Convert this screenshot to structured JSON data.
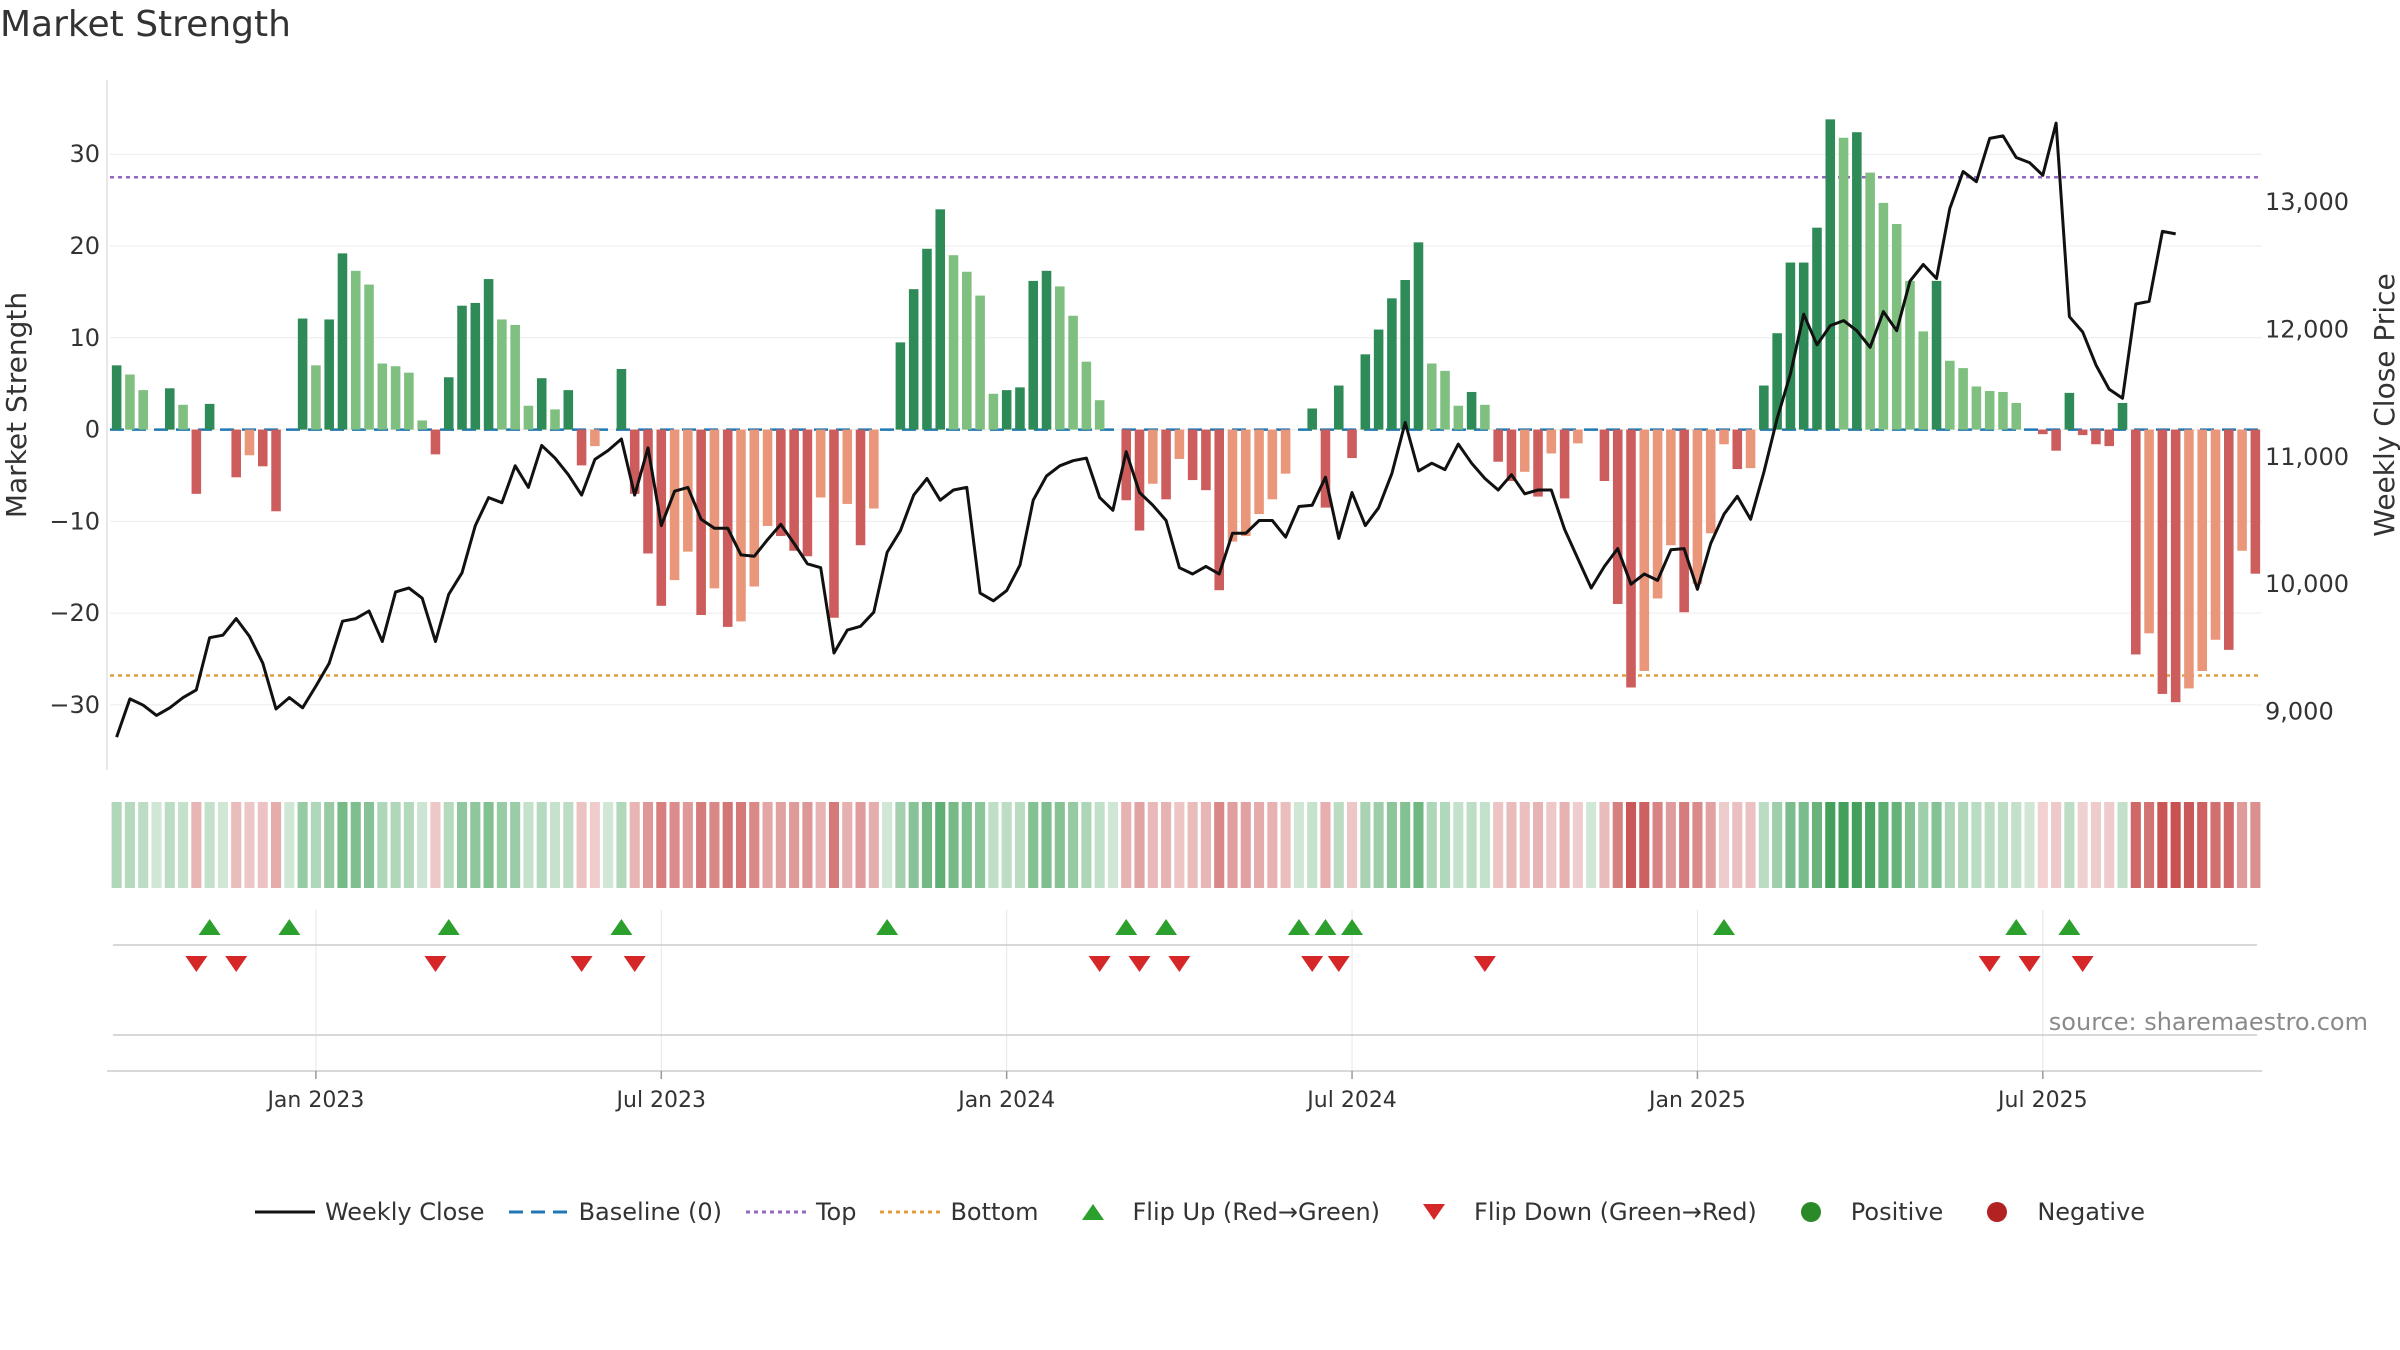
{
  "title": "Market Strength",
  "source": "source: sharemaestro.com",
  "colors": {
    "pos_strong": "#2e8b57",
    "pos_light": "#7fbf7f",
    "neg_strong": "#cd5c5c",
    "neg_light": "#e9967a",
    "line": "#111111",
    "baseline": "#1f77b4",
    "top": "#9467bd",
    "bottom": "#e0a040",
    "flip_up": "#2ca02c",
    "flip_down": "#d62728",
    "positive": "#2a8a2a",
    "negative": "#b22222"
  },
  "legend": [
    {
      "label": "Weekly Close",
      "kind": "line"
    },
    {
      "label": "Baseline (0)",
      "kind": "dash"
    },
    {
      "label": "Top",
      "kind": "dot_top"
    },
    {
      "label": "Bottom",
      "kind": "dot_bottom"
    },
    {
      "label": "Flip Up (Red→Green)",
      "kind": "tri_up"
    },
    {
      "label": "Flip Down (Green→Red)",
      "kind": "tri_down"
    },
    {
      "label": "Positive",
      "kind": "dot_pos"
    },
    {
      "label": "Negative",
      "kind": "dot_neg"
    }
  ],
  "chart_data": {
    "type": "bar",
    "ylabel": "Market Strength",
    "y2label": "Weekly Close Price",
    "ylim": [
      -36,
      37
    ],
    "y2lim": [
      8620,
      13880
    ],
    "yticks": [
      30,
      20,
      10,
      0,
      -10,
      -20,
      -30
    ],
    "yticklabels": [
      "30",
      "20",
      "10",
      "0",
      "−10",
      "−20",
      "−30"
    ],
    "y2ticks": [
      13000,
      12000,
      11000,
      10000,
      9000
    ],
    "y2ticklabels": [
      "13,000",
      "12,000",
      "11,000",
      "10,000",
      "9,000"
    ],
    "xticks": [
      {
        "week": 15,
        "label": "Jan 2023"
      },
      {
        "week": 41,
        "label": "Jul 2023"
      },
      {
        "week": 67,
        "label": "Jan 2024"
      },
      {
        "week": 93,
        "label": "Jul 2024"
      },
      {
        "week": 119,
        "label": "Jan 2025"
      },
      {
        "week": 145,
        "label": "Jul 2025"
      }
    ],
    "top_level": 27.5,
    "bottom_level": -26.8,
    "baseline": 0,
    "strength": [
      7,
      6,
      4.3,
      0,
      4.5,
      2.7,
      -7,
      2.8,
      0,
      -5.2,
      -2.8,
      -4,
      -8.9,
      0,
      12.1,
      7,
      12,
      19.2,
      17.3,
      15.8,
      7.2,
      6.9,
      6.2,
      1,
      -2.7,
      5.7,
      13.5,
      13.8,
      16.4,
      12,
      11.4,
      2.6,
      5.6,
      2.2,
      4.3,
      -3.9,
      -1.8,
      0,
      6.6,
      -7,
      -13.5,
      -19.2,
      -16.4,
      -13.3,
      -20.2,
      -17.3,
      -21.5,
      -20.9,
      -17.1,
      -10.5,
      -11.6,
      -13.2,
      -13.8,
      -7.4,
      -20.5,
      -8.1,
      -12.6,
      -8.6,
      0,
      9.5,
      15.3,
      19.7,
      24,
      19,
      17.2,
      14.6,
      3.9,
      4.3,
      4.6,
      16.2,
      17.3,
      15.6,
      12.4,
      7.4,
      3.2,
      0,
      -7.7,
      -11,
      -5.9,
      -7.6,
      -3.2,
      -5.5,
      -6.6,
      -17.5,
      -12.2,
      -11.6,
      -9.2,
      -7.6,
      -4.8,
      0,
      2.3,
      -8.5,
      4.8,
      -3.1,
      8.2,
      10.9,
      14.3,
      16.3,
      20.4,
      7.2,
      6.4,
      2.6,
      4.1,
      2.7,
      -3.5,
      -5.6,
      -4.6,
      -7.3,
      -2.6,
      -7.5,
      -1.5,
      0,
      -5.6,
      -19,
      -28.1,
      -26.3,
      -18.4,
      -12.6,
      -19.9,
      -16.8,
      -11.3,
      -1.6,
      -4.3,
      -4.2,
      4.8,
      10.5,
      18.2,
      18.2,
      22,
      33.8,
      31.8,
      32.4,
      28,
      24.7,
      22.4,
      16.2,
      10.7,
      16.2,
      7.5,
      6.7,
      4.7,
      4.2,
      4.1,
      2.9,
      0,
      -0.5,
      -2.3,
      4,
      -0.6,
      -1.6,
      -1.8,
      2.9,
      -24.5,
      -22.2,
      -28.8,
      -29.7,
      -28.2,
      -26.3,
      -22.9,
      -24,
      -13.2,
      -15.7
    ],
    "close": [
      8800,
      9100,
      9050,
      8970,
      9030,
      9110,
      9170,
      9580,
      9600,
      9730,
      9590,
      9380,
      9020,
      9110,
      9030,
      9200,
      9380,
      9710,
      9730,
      9790,
      9550,
      9940,
      9970,
      9890,
      9550,
      9920,
      10090,
      10460,
      10680,
      10640,
      10930,
      10760,
      11090,
      10990,
      10860,
      10700,
      10980,
      11050,
      11140,
      10700,
      11070,
      10460,
      10730,
      10760,
      10510,
      10440,
      10440,
      10230,
      10220,
      10350,
      10470,
      10320,
      10160,
      10130,
      9460,
      9640,
      9670,
      9780,
      10250,
      10420,
      10700,
      10830,
      10660,
      10740,
      10760,
      9930,
      9870,
      9950,
      10150,
      10660,
      10850,
      10930,
      10970,
      10990,
      10680,
      10580,
      11040,
      10720,
      10620,
      10500,
      10130,
      10080,
      10140,
      10080,
      10400,
      10400,
      10500,
      10500,
      10370,
      10610,
      10620,
      10840,
      10360,
      10720,
      10460,
      10600,
      10870,
      11270,
      10890,
      10950,
      10900,
      11100,
      10950,
      10830,
      10740,
      10860,
      10710,
      10740,
      10740,
      10430,
      10200,
      9970,
      10140,
      10280,
      10000,
      10080,
      10030,
      10270,
      10280,
      9960,
      10320,
      10550,
      10690,
      10510,
      10880,
      11300,
      11650,
      12120,
      11880,
      12030,
      12070,
      11990,
      11860,
      12140,
      11990,
      12380,
      12510,
      12400,
      12950,
      13240,
      13160,
      13500,
      13520,
      13350,
      13310,
      13210,
      13620,
      12100,
      11980,
      11720,
      11530,
      11460,
      12200,
      12220,
      12770,
      12750
    ]
  },
  "flip_up_weeks": [
    7,
    13,
    25,
    38,
    58,
    76,
    79,
    89,
    91,
    93,
    121,
    143,
    147
  ],
  "flip_down_weeks": [
    6,
    9,
    24,
    35,
    39,
    74,
    77,
    80,
    90,
    92,
    103,
    141,
    144,
    148
  ]
}
